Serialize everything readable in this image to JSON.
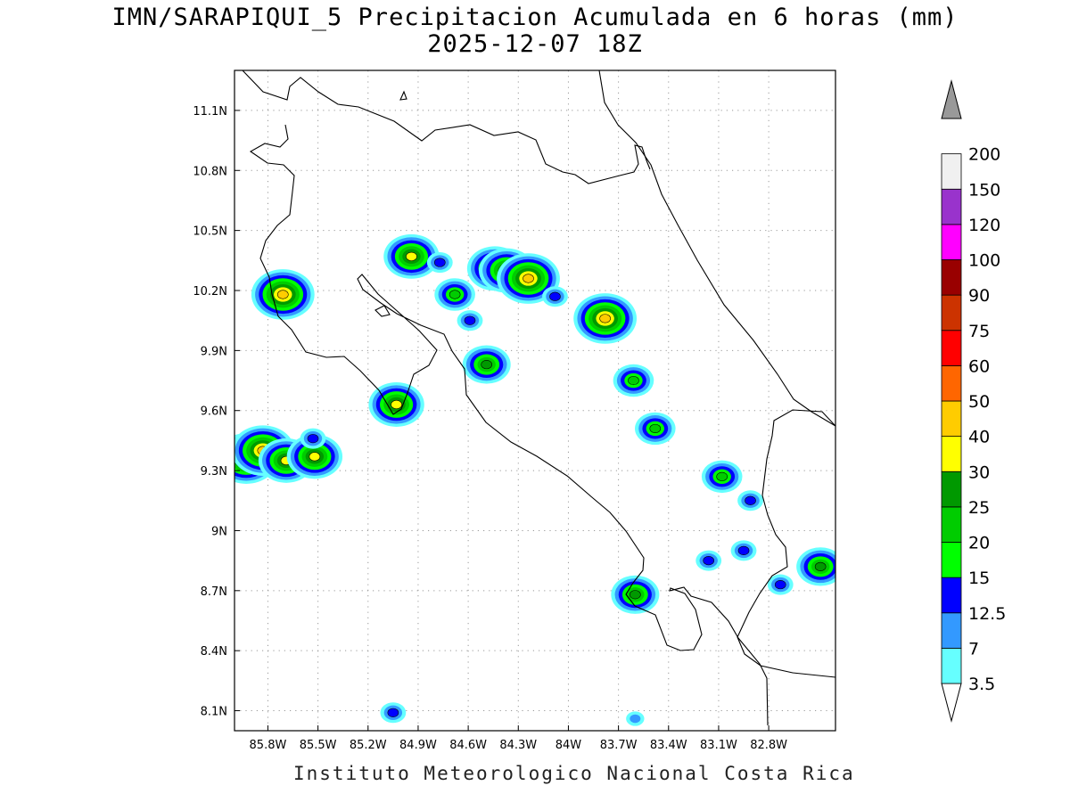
{
  "title": {
    "line1": "IMN/SARAPIQUI_5 Precipitacion Acumulada en 6 horas (mm)",
    "line2": "2025-12-07 18Z"
  },
  "footer": "Instituto Meteorologico Nacional Costa Rica",
  "axes": {
    "lon_range": [
      -86.0,
      -82.4
    ],
    "lat_range": [
      8.0,
      11.3
    ],
    "x_ticks": [
      "85.8W",
      "85.5W",
      "85.2W",
      "84.9W",
      "84.6W",
      "84.3W",
      "84W",
      "83.7W",
      "83.4W",
      "83.1W",
      "82.8W"
    ],
    "x_tick_values": [
      -85.8,
      -85.5,
      -85.2,
      -84.9,
      -84.6,
      -84.3,
      -84.0,
      -83.7,
      -83.4,
      -83.1,
      -82.8
    ],
    "y_ticks": [
      "8.1N",
      "8.4N",
      "8.7N",
      "9N",
      "9.3N",
      "9.6N",
      "9.9N",
      "10.2N",
      "10.5N",
      "10.8N",
      "11.1N"
    ],
    "y_tick_values": [
      8.1,
      8.4,
      8.7,
      9.0,
      9.3,
      9.6,
      9.9,
      10.2,
      10.5,
      10.8,
      11.1
    ],
    "grid": "dotted"
  },
  "colorbar": {
    "levels": [
      "3.5",
      "7",
      "12.5",
      "15",
      "20",
      "25",
      "30",
      "40",
      "50",
      "60",
      "75",
      "90",
      "100",
      "120",
      "150",
      "200"
    ],
    "colors": [
      "#66ffff",
      "#3399ff",
      "#0000ff",
      "#00ff00",
      "#00cc00",
      "#009900",
      "#ffff00",
      "#ffcc00",
      "#ff6600",
      "#ff0000",
      "#cc3300",
      "#990000",
      "#ff00ff",
      "#9933cc",
      "#f0f0f0",
      "#999999"
    ]
  },
  "precip_cells": [
    {
      "lon": -85.93,
      "lat": 9.36,
      "peak": "40"
    },
    {
      "lon": -85.83,
      "lat": 9.4,
      "peak": "40"
    },
    {
      "lon": -85.69,
      "lat": 9.35,
      "peak": "30"
    },
    {
      "lon": -85.52,
      "lat": 9.37,
      "peak": "30"
    },
    {
      "lon": -85.53,
      "lat": 9.46,
      "peak": "12.5"
    },
    {
      "lon": -85.71,
      "lat": 10.18,
      "peak": "40"
    },
    {
      "lon": -85.03,
      "lat": 9.63,
      "peak": "30"
    },
    {
      "lon": -84.94,
      "lat": 10.37,
      "peak": "30"
    },
    {
      "lon": -84.77,
      "lat": 10.34,
      "peak": "12.5"
    },
    {
      "lon": -84.68,
      "lat": 10.18,
      "peak": "20"
    },
    {
      "lon": -84.44,
      "lat": 10.31,
      "peak": "30"
    },
    {
      "lon": -84.37,
      "lat": 10.3,
      "peak": "30"
    },
    {
      "lon": -84.24,
      "lat": 10.26,
      "peak": "40"
    },
    {
      "lon": -84.08,
      "lat": 10.17,
      "peak": "12.5"
    },
    {
      "lon": -84.59,
      "lat": 10.05,
      "peak": "12.5"
    },
    {
      "lon": -84.49,
      "lat": 9.83,
      "peak": "25"
    },
    {
      "lon": -83.78,
      "lat": 10.06,
      "peak": "40"
    },
    {
      "lon": -83.61,
      "lat": 9.75,
      "peak": "20"
    },
    {
      "lon": -83.48,
      "lat": 9.51,
      "peak": "20"
    },
    {
      "lon": -83.08,
      "lat": 9.27,
      "peak": "20"
    },
    {
      "lon": -82.91,
      "lat": 9.15,
      "peak": "12.5"
    },
    {
      "lon": -83.6,
      "lat": 8.68,
      "peak": "25"
    },
    {
      "lon": -83.16,
      "lat": 8.85,
      "peak": "12.5"
    },
    {
      "lon": -82.49,
      "lat": 8.82,
      "peak": "25"
    },
    {
      "lon": -82.95,
      "lat": 8.9,
      "peak": "12.5"
    },
    {
      "lon": -82.73,
      "lat": 8.73,
      "peak": "12.5"
    },
    {
      "lon": -85.05,
      "lat": 8.09,
      "peak": "12.5"
    },
    {
      "lon": -83.6,
      "lat": 8.06,
      "peak": "7"
    }
  ]
}
